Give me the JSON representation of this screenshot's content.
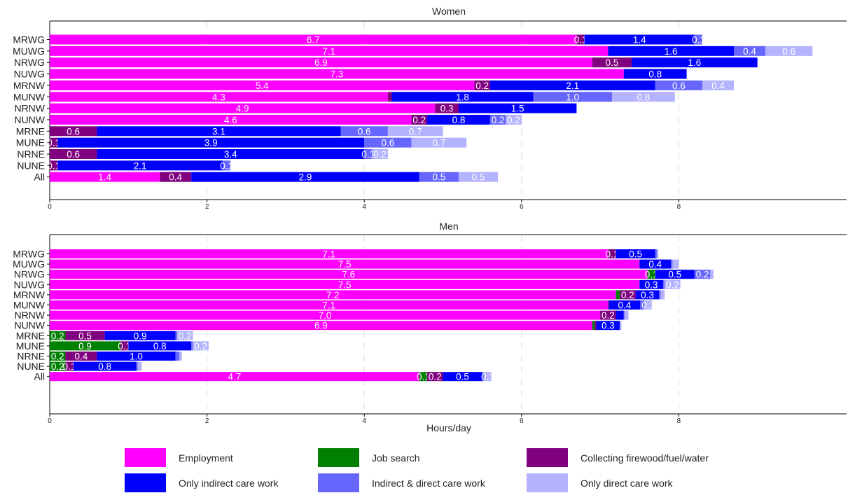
{
  "chart_data": [
    {
      "type": "bar",
      "orientation": "horizontal",
      "stacked": true,
      "title": "Women",
      "xlabel": "",
      "xlim": [
        0,
        12.3
      ],
      "xticks": [
        0,
        2,
        4,
        6,
        8
      ],
      "categories": [
        "MRWG",
        "MUWG",
        "NRWG",
        "NUWG",
        "MRNW",
        "MUNW",
        "NRNW",
        "NUNW",
        "MRNE",
        "MUNE",
        "NRNE",
        "NUNE",
        "All"
      ],
      "series": [
        {
          "name": "Employment",
          "values": [
            6.7,
            7.1,
            6.9,
            7.3,
            5.4,
            4.3,
            4.9,
            4.6,
            0,
            0,
            0,
            0,
            1.4
          ]
        },
        {
          "name": "Job search",
          "values": [
            0,
            0,
            0,
            0,
            0,
            0,
            0,
            0,
            0,
            0,
            0,
            0,
            0
          ]
        },
        {
          "name": "Collecting firewood/fuel/water",
          "values": [
            0.1,
            0,
            0.5,
            0,
            0.2,
            0.05,
            0.3,
            0.2,
            0.6,
            0.1,
            0.6,
            0.1,
            0.4
          ]
        },
        {
          "name": "Only indirect care work",
          "values": [
            1.4,
            1.6,
            1.6,
            0.8,
            2.1,
            1.8,
            1.5,
            0.8,
            3.1,
            3.9,
            3.4,
            2.1,
            2.9
          ]
        },
        {
          "name": "Indirect & direct care work",
          "values": [
            0.1,
            0.4,
            0,
            0,
            0.6,
            1.0,
            0,
            0.2,
            0.6,
            0.6,
            0.1,
            0.1,
            0.5
          ]
        },
        {
          "name": "Only direct care work",
          "values": [
            0,
            0.6,
            0,
            0,
            0.4,
            0.8,
            0,
            0.2,
            0.7,
            0.7,
            0.2,
            0,
            0.5
          ]
        }
      ],
      "labels": [
        [
          "6.7",
          "",
          "0.1",
          "1.4",
          "0.1",
          ""
        ],
        [
          "7.1",
          "",
          "",
          "1.6",
          "0.4",
          "0.6"
        ],
        [
          "6.9",
          "",
          "0.5",
          "1.6",
          "",
          ""
        ],
        [
          "7.3",
          "",
          "",
          "0.8",
          "",
          ""
        ],
        [
          "5.4",
          "",
          "0.2",
          "2.1",
          "0.6",
          "0.4"
        ],
        [
          "4.3",
          "",
          "",
          "1.8",
          "1.0",
          "0.8"
        ],
        [
          "4.9",
          "",
          "0.3",
          "1.5",
          "",
          ""
        ],
        [
          "4.6",
          "",
          "0.2",
          "0.8",
          "0.2",
          "0.2"
        ],
        [
          "",
          "",
          "0.6",
          "3.1",
          "0.6",
          "0.7"
        ],
        [
          "",
          "",
          "0.1",
          "3.9",
          "0.6",
          "0.7"
        ],
        [
          "",
          "",
          "0.6",
          "3.4",
          "0.1",
          "0.2"
        ],
        [
          "",
          "",
          "0.1",
          "2.1",
          "0.1",
          ""
        ],
        [
          "1.4",
          "",
          "0.4",
          "2.9",
          "0.5",
          "0.5"
        ]
      ]
    },
    {
      "type": "bar",
      "orientation": "horizontal",
      "stacked": true,
      "title": "Men",
      "xlabel": "Hours/day",
      "xlim": [
        0,
        12.3
      ],
      "xticks": [
        0,
        2,
        4,
        6,
        8
      ],
      "categories": [
        "MRWG",
        "MUWG",
        "NRWG",
        "NUWG",
        "MRNW",
        "MUNW",
        "NRNW",
        "NUNW",
        "MRNE",
        "MUNE",
        "NRNE",
        "NUNE",
        "All"
      ],
      "series": [
        {
          "name": "Employment",
          "values": [
            7.1,
            7.5,
            7.6,
            7.5,
            7.2,
            7.1,
            7.0,
            6.9,
            0,
            0,
            0,
            0,
            4.7
          ]
        },
        {
          "name": "Job search",
          "values": [
            0,
            0,
            0.1,
            0,
            0.05,
            0,
            0,
            0.03,
            0.2,
            0.9,
            0.2,
            0.2,
            0.1
          ]
        },
        {
          "name": "Collecting firewood/fuel/water",
          "values": [
            0.1,
            0,
            0,
            0,
            0.2,
            0.01,
            0.2,
            0.02,
            0.5,
            0.1,
            0.4,
            0.1,
            0.2
          ]
        },
        {
          "name": "Only indirect care work",
          "values": [
            0.5,
            0.4,
            0.5,
            0.3,
            0.3,
            0.4,
            0.1,
            0.3,
            0.9,
            0.8,
            1.0,
            0.8,
            0.5
          ]
        },
        {
          "name": "Indirect & direct care work",
          "values": [
            0.02,
            0.02,
            0.2,
            0.02,
            0.02,
            0.05,
            0.01,
            0,
            0.02,
            0.02,
            0.05,
            0.02,
            0.02
          ]
        },
        {
          "name": "Only direct care work",
          "values": [
            0.02,
            0.08,
            0.04,
            0.2,
            0.05,
            0.1,
            0.05,
            0.02,
            0.2,
            0.2,
            0.03,
            0.05,
            0.1
          ]
        }
      ],
      "labels": [
        [
          "7.1",
          "",
          "0.1",
          "0.5",
          "",
          ""
        ],
        [
          "7.5",
          "",
          "",
          "0.4",
          "",
          ""
        ],
        [
          "7.6",
          "0.1",
          "",
          "0.5",
          "0.2",
          ""
        ],
        [
          "7.5",
          "",
          "",
          "0.3",
          "",
          "0.2"
        ],
        [
          "7.2",
          "",
          "0.2",
          "0.3",
          "",
          ""
        ],
        [
          "7.1",
          "",
          "",
          "0.4",
          "",
          "0.1"
        ],
        [
          "7.0",
          "",
          "0.2",
          "",
          "",
          ""
        ],
        [
          "6.9",
          "",
          "",
          "0.3",
          "",
          ""
        ],
        [
          "",
          "0.2",
          "0.5",
          "0.9",
          "",
          "0.2"
        ],
        [
          "",
          "0.9",
          "0.1",
          "0.8",
          "",
          "0.2"
        ],
        [
          "",
          "0.2",
          "0.4",
          "1.0",
          "",
          ""
        ],
        [
          "",
          "0.2",
          "0.1",
          "0.8",
          "",
          ""
        ],
        [
          "4.7",
          "0.1",
          "0.2",
          "0.5",
          "",
          "0.1"
        ]
      ]
    }
  ],
  "legend": [
    {
      "label": "Employment",
      "color": "#ff00ff"
    },
    {
      "label": "Job search",
      "color": "#008000"
    },
    {
      "label": "Collecting firewood/fuel/water",
      "color": "#800080"
    },
    {
      "label": "Only indirect care work",
      "color": "#0000ff"
    },
    {
      "label": "Indirect & direct care work",
      "color": "#6666ff"
    },
    {
      "label": "Only direct care work",
      "color": "#b3b3ff"
    }
  ]
}
